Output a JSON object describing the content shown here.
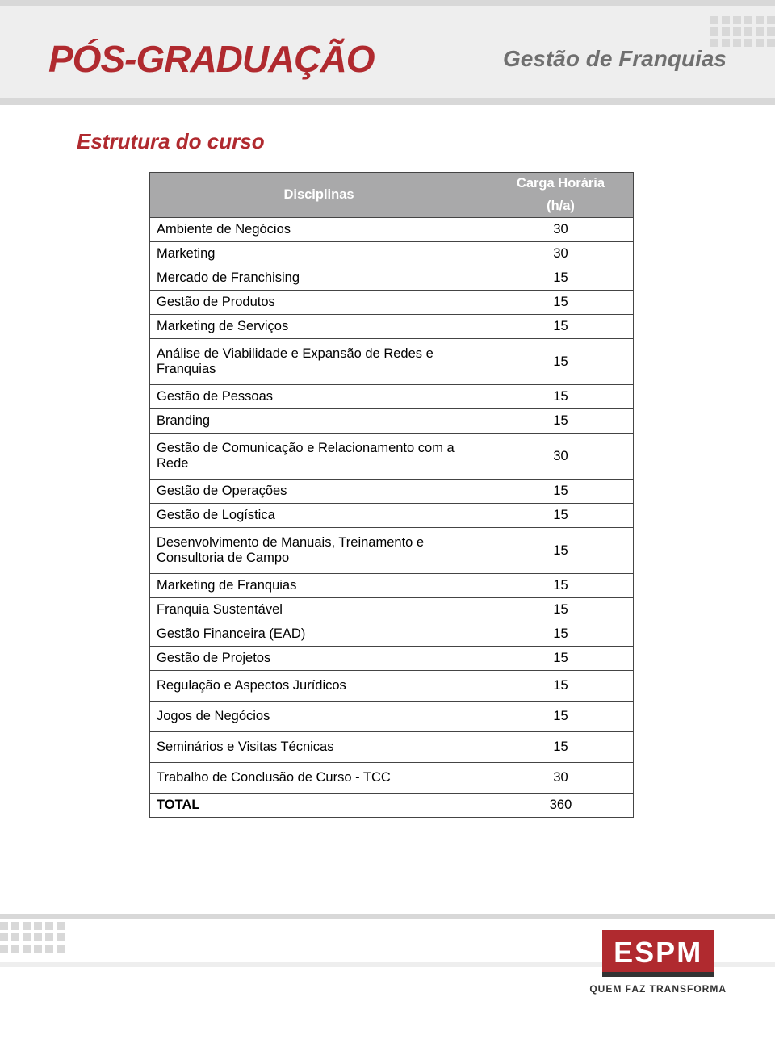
{
  "colors": {
    "accent": "#b02a2f",
    "header_bg": "#eeeeee",
    "strip": "#d8d8d8",
    "table_header_bg": "#a9a9aa",
    "text": "#212121",
    "subject_text": "#6f6f6f",
    "footer_logo_underline": "#333333"
  },
  "header": {
    "logo": "PÓS-GRADUAÇÃO",
    "subject": "Gestão de Franquias"
  },
  "section_title": "Estrutura do curso",
  "table": {
    "col_discipline": "Disciplinas",
    "col_hours_line1": "Carga Horária",
    "col_hours_line2": "(h/a)",
    "rows": [
      {
        "label": "Ambiente de Negócios",
        "value": "30",
        "tall": false
      },
      {
        "label": "Marketing",
        "value": "30",
        "tall": false
      },
      {
        "label": "Mercado de Franchising",
        "value": "15",
        "tall": false
      },
      {
        "label": "Gestão de Produtos",
        "value": "15",
        "tall": false
      },
      {
        "label": "Marketing de Serviços",
        "value": "15",
        "tall": false
      },
      {
        "label": "Análise de Viabilidade e Expansão de Redes e Franquias",
        "value": "15",
        "tall": true
      },
      {
        "label": "Gestão de Pessoas",
        "value": "15",
        "tall": false
      },
      {
        "label": "Branding",
        "value": "15",
        "tall": false
      },
      {
        "label": "Gestão de Comunicação e Relacionamento com a Rede",
        "value": "30",
        "tall": true
      },
      {
        "label": "Gestão de Operações",
        "value": "15",
        "tall": false
      },
      {
        "label": "Gestão de Logística",
        "value": "15",
        "tall": false
      },
      {
        "label": "Desenvolvimento de Manuais, Treinamento e Consultoria de Campo",
        "value": "15",
        "tall": true
      },
      {
        "label": "Marketing de Franquias",
        "value": "15",
        "tall": false
      },
      {
        "label": "Franquia Sustentável",
        "value": "15",
        "tall": false
      },
      {
        "label": "Gestão Financeira (EAD)",
        "value": "15",
        "tall": false
      },
      {
        "label": "Gestão de Projetos",
        "value": "15",
        "tall": false
      },
      {
        "label": "Regulação e Aspectos Jurídicos",
        "value": "15",
        "tall": true
      },
      {
        "label": "Jogos de Negócios",
        "value": "15",
        "tall": true
      },
      {
        "label": "Seminários e Visitas Técnicas",
        "value": "15",
        "tall": true
      },
      {
        "label": "Trabalho de Conclusão de Curso - TCC",
        "value": "30",
        "tall": true
      }
    ],
    "total_label": "TOTAL",
    "total_value": "360"
  },
  "footer": {
    "logo_text": "ESPM",
    "tagline": "QUEM FAZ TRANSFORMA"
  }
}
